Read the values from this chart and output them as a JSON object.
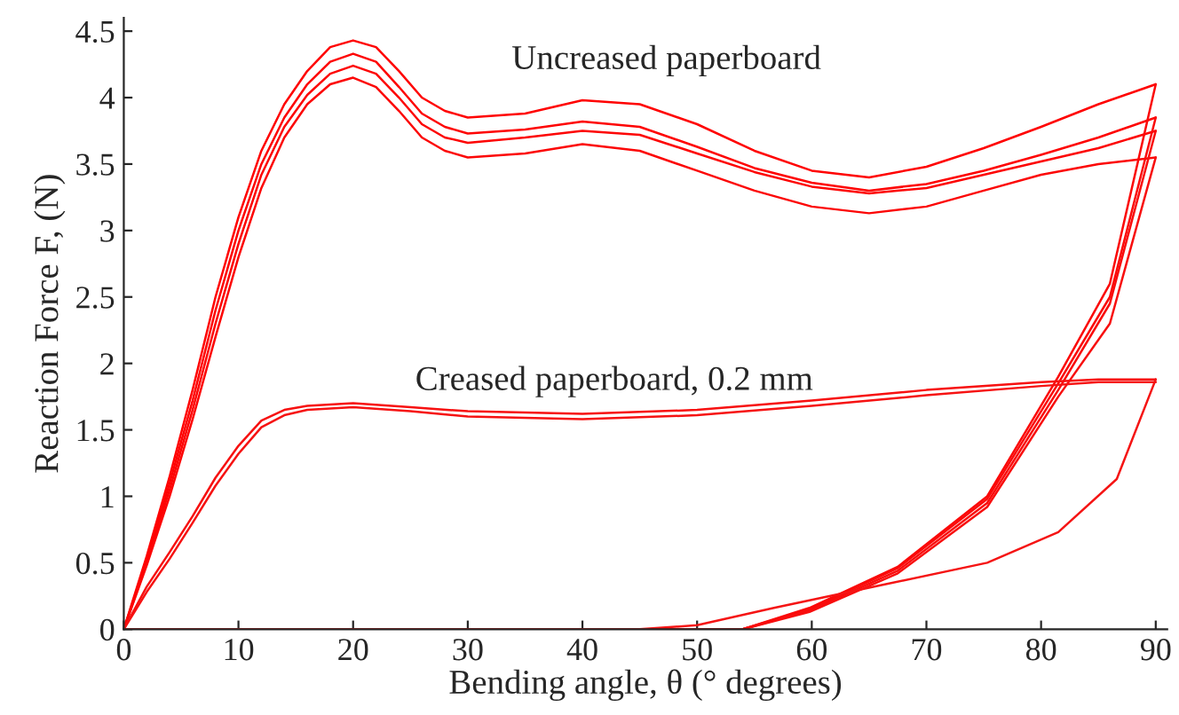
{
  "chart_data": {
    "type": "line",
    "xlabel": "Bending angle, θ (° degrees)",
    "ylabel": "Reaction Force F, (N)",
    "xlim": [
      0,
      91
    ],
    "ylim": [
      0,
      4.6
    ],
    "xticks": [
      0,
      10,
      20,
      30,
      40,
      50,
      60,
      70,
      80,
      90
    ],
    "yticks": [
      0,
      0.5,
      1,
      1.5,
      2,
      2.5,
      3,
      3.5,
      4,
      4.5
    ],
    "grid": false,
    "legend": false,
    "marker": "none",
    "line_style": "solid",
    "annotations": [
      "Uncreased paperboard",
      "Creased paperboard, 0.2 mm"
    ],
    "series": [
      {
        "color": "#ff0000",
        "x": [
          0,
          2,
          4,
          6,
          8,
          10,
          12,
          14,
          16,
          18,
          20,
          22,
          24,
          26,
          28,
          30,
          35,
          40,
          45,
          50,
          55,
          60,
          65,
          70,
          75,
          80,
          85,
          90
        ],
        "values": [
          0,
          0.55,
          1.15,
          1.8,
          2.5,
          3.1,
          3.6,
          3.95,
          4.2,
          4.38,
          4.43,
          4.38,
          4.2,
          4.0,
          3.9,
          3.85,
          3.88,
          3.98,
          3.95,
          3.8,
          3.6,
          3.45,
          3.4,
          3.48,
          3.62,
          3.78,
          3.95,
          4.1
        ]
      },
      {
        "color": "#fe0202",
        "x": [
          0,
          2,
          4,
          6,
          8,
          10,
          12,
          14,
          16,
          18,
          20,
          22,
          24,
          26,
          28,
          30,
          35,
          40,
          45,
          50,
          55,
          60,
          65,
          70,
          75,
          80,
          85,
          90
        ],
        "values": [
          0,
          0.52,
          1.1,
          1.72,
          2.4,
          3.0,
          3.5,
          3.85,
          4.1,
          4.27,
          4.33,
          4.27,
          4.08,
          3.88,
          3.78,
          3.73,
          3.76,
          3.82,
          3.78,
          3.63,
          3.47,
          3.36,
          3.3,
          3.35,
          3.45,
          3.57,
          3.7,
          3.85
        ]
      },
      {
        "color": "#fd0404",
        "x": [
          0,
          2,
          4,
          6,
          8,
          10,
          12,
          14,
          16,
          18,
          20,
          22,
          24,
          26,
          28,
          30,
          35,
          40,
          45,
          50,
          55,
          60,
          65,
          70,
          75,
          80,
          85,
          90
        ],
        "values": [
          0,
          0.5,
          1.05,
          1.65,
          2.3,
          2.9,
          3.42,
          3.78,
          4.02,
          4.18,
          4.24,
          4.18,
          4.0,
          3.8,
          3.7,
          3.66,
          3.7,
          3.75,
          3.72,
          3.58,
          3.44,
          3.33,
          3.28,
          3.32,
          3.42,
          3.52,
          3.62,
          3.75
        ]
      },
      {
        "color": "#fc0606",
        "x": [
          0,
          2,
          4,
          6,
          8,
          10,
          12,
          14,
          16,
          18,
          20,
          22,
          24,
          26,
          28,
          30,
          35,
          40,
          45,
          50,
          55,
          60,
          65,
          70,
          75,
          80,
          85,
          90
        ],
        "values": [
          0,
          0.48,
          1.0,
          1.58,
          2.2,
          2.8,
          3.32,
          3.7,
          3.95,
          4.1,
          4.15,
          4.08,
          3.9,
          3.7,
          3.6,
          3.55,
          3.58,
          3.65,
          3.6,
          3.45,
          3.3,
          3.18,
          3.13,
          3.18,
          3.3,
          3.42,
          3.5,
          3.55
        ]
      },
      {
        "color": "#fb0808",
        "x": [
          0,
          54,
          59.8,
          67.5,
          75.3,
          81.5,
          86,
          90
        ],
        "values": [
          0,
          0,
          0.16,
          0.47,
          1.0,
          1.9,
          2.6,
          4.1
        ]
      },
      {
        "color": "#fa0a0a",
        "x": [
          0,
          54,
          59.8,
          67.5,
          75.3,
          81.5,
          86,
          90
        ],
        "values": [
          0,
          0,
          0.15,
          0.46,
          0.98,
          1.85,
          2.5,
          3.85
        ]
      },
      {
        "color": "#f90c0c",
        "x": [
          0,
          54,
          59.8,
          67.5,
          75.3,
          81.5,
          86,
          90
        ],
        "values": [
          0,
          0,
          0.14,
          0.44,
          0.95,
          1.8,
          2.45,
          3.75
        ]
      },
      {
        "color": "#f80e0e",
        "x": [
          0,
          54,
          59.8,
          67.5,
          75.3,
          81.5,
          86,
          90
        ],
        "values": [
          0,
          0,
          0.13,
          0.42,
          0.92,
          1.75,
          2.3,
          3.55
        ]
      },
      {
        "color": "#f71010",
        "x": [
          0,
          2,
          4,
          6,
          8,
          10,
          12,
          14,
          16,
          20,
          25,
          30,
          40,
          50,
          60,
          70,
          80,
          85,
          90
        ],
        "values": [
          0,
          0.32,
          0.58,
          0.85,
          1.14,
          1.38,
          1.57,
          1.65,
          1.68,
          1.7,
          1.67,
          1.64,
          1.62,
          1.65,
          1.72,
          1.8,
          1.86,
          1.88,
          1.88
        ]
      },
      {
        "color": "#f61212",
        "x": [
          0,
          2,
          4,
          6,
          8,
          10,
          12,
          14,
          16,
          20,
          25,
          30,
          40,
          50,
          60,
          70,
          80,
          85,
          90
        ],
        "values": [
          0,
          0.28,
          0.53,
          0.8,
          1.08,
          1.32,
          1.52,
          1.61,
          1.65,
          1.67,
          1.64,
          1.6,
          1.58,
          1.61,
          1.68,
          1.76,
          1.83,
          1.86,
          1.86
        ]
      },
      {
        "color": "#f51414",
        "x": [
          0,
          45,
          50,
          56.7,
          66,
          75.3,
          81.5,
          86.6,
          90
        ],
        "values": [
          0,
          0,
          0.03,
          0.16,
          0.33,
          0.5,
          0.73,
          1.13,
          1.88
        ]
      }
    ]
  }
}
